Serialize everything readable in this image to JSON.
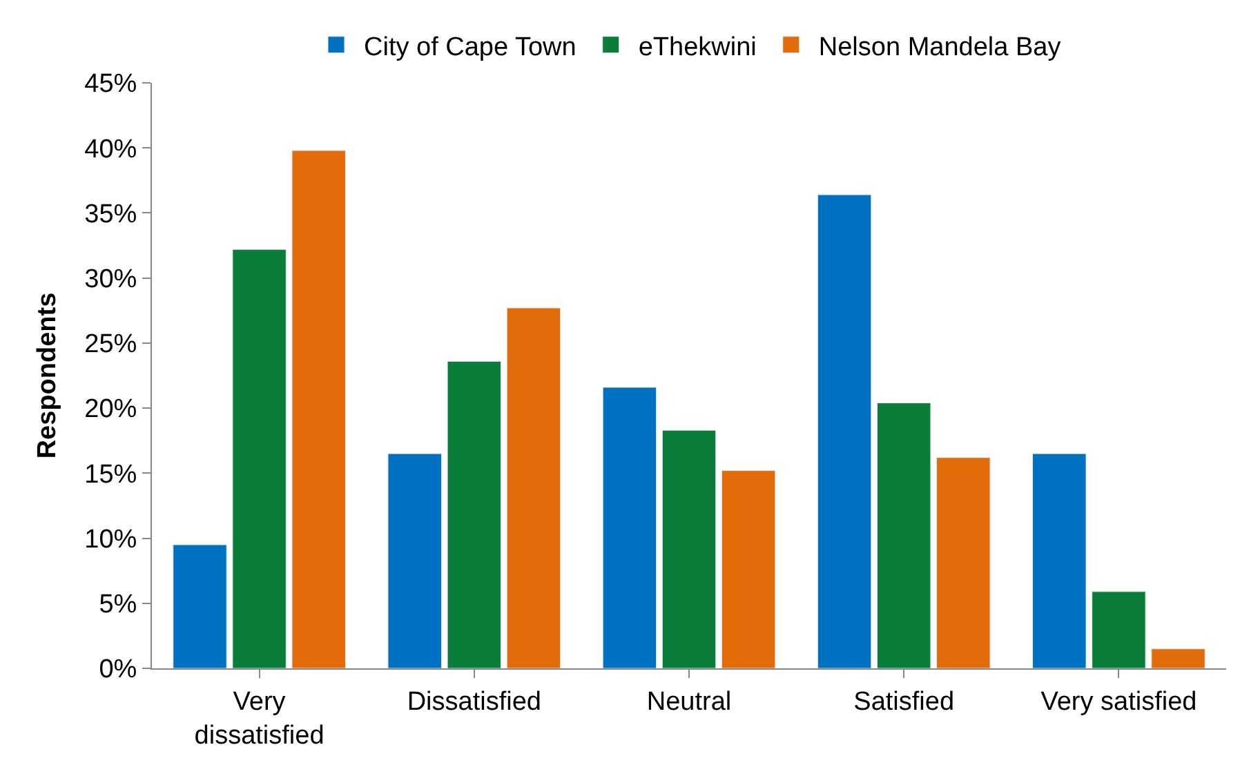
{
  "chart_data": {
    "type": "bar",
    "ylabel": "Respondents",
    "categories": [
      "Very\ndissatisfied",
      "Dissatisfied",
      "Neutral",
      "Satisfied",
      "Very satisfied"
    ],
    "series": [
      {
        "name": "City of Cape Town",
        "color": "#0070c0",
        "values": [
          9.5,
          16.5,
          21.6,
          36.4,
          16.5
        ]
      },
      {
        "name": "eThekwini",
        "color": "#0b7d3a",
        "values": [
          32.2,
          23.6,
          18.3,
          20.4,
          5.9
        ]
      },
      {
        "name": "Nelson Mandela Bay",
        "color": "#e36c0a",
        "values": [
          39.8,
          27.7,
          15.2,
          16.2,
          1.5
        ]
      }
    ],
    "ylim": [
      0,
      45
    ],
    "yticks": [
      {
        "value": 0,
        "label": "0%"
      },
      {
        "value": 5,
        "label": "5%"
      },
      {
        "value": 10,
        "label": "10%"
      },
      {
        "value": 15,
        "label": "15%"
      },
      {
        "value": 20,
        "label": "20%"
      },
      {
        "value": 25,
        "label": "25%"
      },
      {
        "value": 30,
        "label": "30%"
      },
      {
        "value": 35,
        "label": "35%"
      },
      {
        "value": 40,
        "label": "40%"
      },
      {
        "value": 45,
        "label": "45%"
      }
    ],
    "legend": "top"
  }
}
